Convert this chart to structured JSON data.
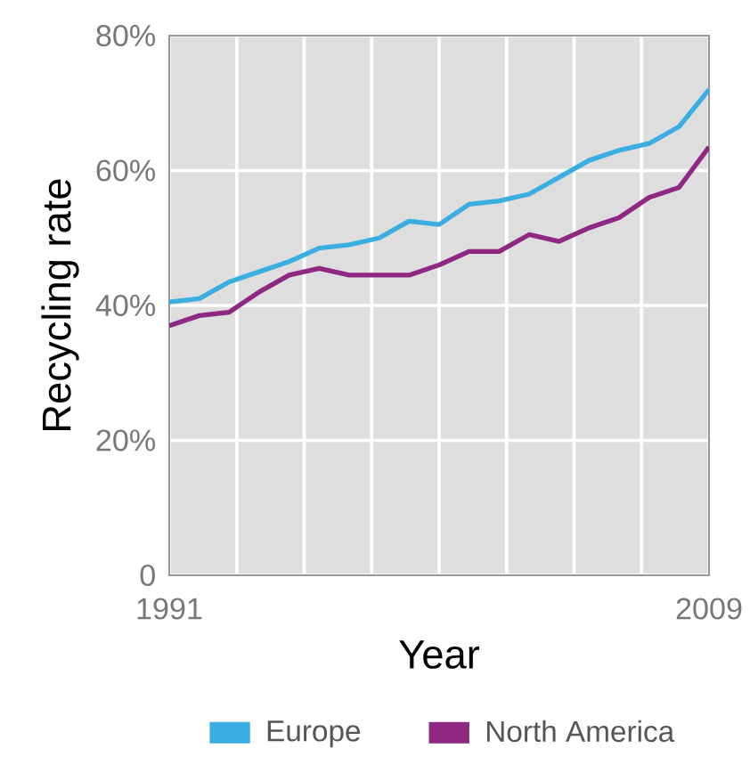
{
  "chart_data": {
    "type": "line",
    "xlabel": "Year",
    "ylabel": "Recycling rate",
    "x": [
      1991,
      1992,
      1993,
      1994,
      1995,
      1996,
      1997,
      1998,
      1999,
      2000,
      2001,
      2002,
      2003,
      2004,
      2005,
      2006,
      2007,
      2008,
      2009
    ],
    "series": [
      {
        "name": "Europe",
        "color": "#3aaee0",
        "values": [
          40.5,
          41,
          43.5,
          45,
          46.5,
          48.5,
          49,
          50,
          52.5,
          52,
          55,
          55.5,
          56.5,
          59,
          61.5,
          63,
          64,
          66.5,
          72
        ]
      },
      {
        "name": "North America",
        "color": "#8e2883",
        "values": [
          37,
          38.5,
          39,
          42,
          44.5,
          45.5,
          44.5,
          44.5,
          44.5,
          46,
          48,
          48,
          50.5,
          49.5,
          51.5,
          53,
          56,
          57.5,
          63.5
        ]
      }
    ],
    "xlim": [
      1991,
      2009
    ],
    "xticks": [
      1991,
      {
        "value": 1993.25,
        "label": null
      },
      {
        "value": 1995.5,
        "label": null
      },
      {
        "value": 1997.75,
        "label": null
      },
      {
        "value": 2000,
        "label": null
      },
      {
        "value": 2002.25,
        "label": null
      },
      {
        "value": 2004.5,
        "label": null
      },
      {
        "value": 2006.75,
        "label": null
      },
      2009
    ],
    "ylim": [
      0,
      80
    ],
    "yticks": [
      0,
      {
        "value": 20,
        "label": "20%"
      },
      {
        "value": 40,
        "label": "40%"
      },
      {
        "value": 60,
        "label": "60%"
      },
      {
        "value": 80,
        "label": "80%"
      }
    ],
    "grid": true,
    "legend": "bottom",
    "line_style": "solid",
    "marker": "none"
  }
}
